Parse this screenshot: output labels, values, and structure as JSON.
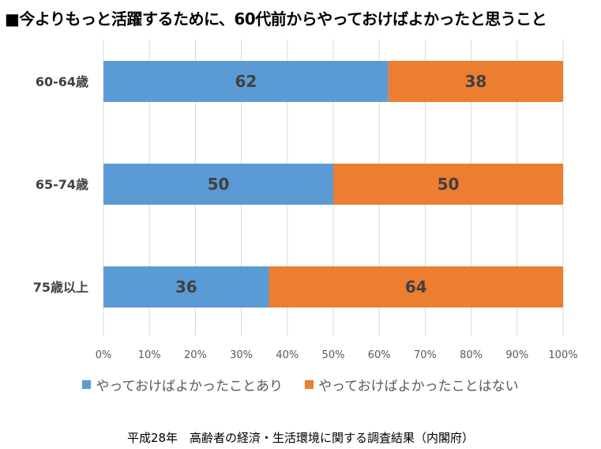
{
  "title": "■今よりもっと活躍するために、60代前からやっておけばよかったと思うこと",
  "source": "平成28年　高齢者の経済・生活環境に関する調査結果（内閣府）",
  "chart_data": {
    "type": "bar",
    "orientation": "horizontal",
    "stacked": true,
    "categories": [
      "60-64歳",
      "65-74歳",
      "75歳以上"
    ],
    "series": [
      {
        "name": "やっておけばよかったことあり",
        "values": [
          62,
          50,
          36
        ],
        "color": "#5b9bd5"
      },
      {
        "name": "やっておけばよかったことはない",
        "values": [
          38,
          50,
          64
        ],
        "color": "#ed7d31"
      }
    ],
    "xlim": [
      0,
      100
    ],
    "x_ticks": [
      "0%",
      "10%",
      "20%",
      "30%",
      "40%",
      "50%",
      "60%",
      "70%",
      "80%",
      "90%",
      "100%"
    ],
    "grid": true,
    "legend_position": "bottom"
  }
}
